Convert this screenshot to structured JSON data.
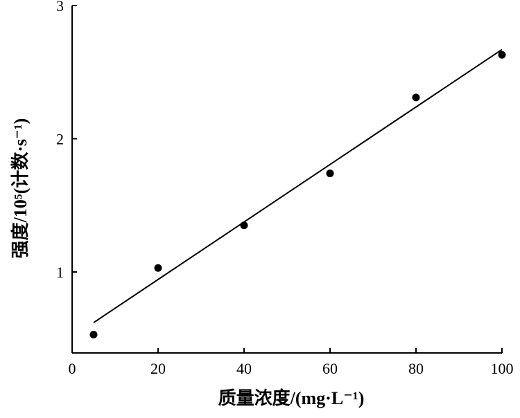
{
  "chart_data": {
    "type": "scatter",
    "title": "",
    "xlabel": "质量浓度/(mg·L⁻¹)",
    "ylabel": "强度/10⁵(计数·s⁻¹)",
    "xlim": [
      0,
      100
    ],
    "ylim": [
      0.4,
      3.0
    ],
    "xticks": [
      0,
      20,
      40,
      60,
      80,
      100
    ],
    "yticks": [
      1,
      2,
      3
    ],
    "grid": false,
    "series": [
      {
        "x": [
          5,
          20,
          40,
          60,
          80,
          100
        ],
        "y": [
          0.53,
          1.03,
          1.35,
          1.74,
          2.31,
          2.63
        ]
      }
    ],
    "fit_line": {
      "x": [
        5,
        100
      ],
      "y": [
        0.62,
        2.67
      ]
    },
    "colors": {
      "axis": "#000000",
      "marker": "#000000",
      "line": "#000000"
    }
  }
}
